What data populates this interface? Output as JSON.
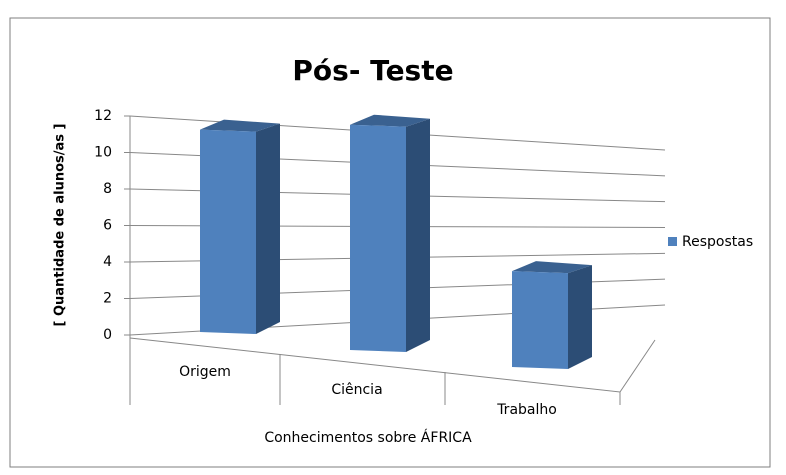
{
  "chart_data": {
    "type": "bar3d",
    "title": "Pós- Teste",
    "y_label": "[ Quantidade de alunos/as ]",
    "x_label": "Conhecimentos sobre ÁFRICA",
    "categories": [
      "Origem",
      "Ciência",
      "Trabalho"
    ],
    "series": [
      {
        "name": "Respostas",
        "color": "#4f81bd",
        "values": [
          11,
          12,
          5
        ]
      }
    ],
    "ylim": [
      0,
      12
    ],
    "yticks": [
      0,
      2,
      4,
      6,
      8,
      10,
      12
    ],
    "grid": true,
    "legend": "right"
  }
}
